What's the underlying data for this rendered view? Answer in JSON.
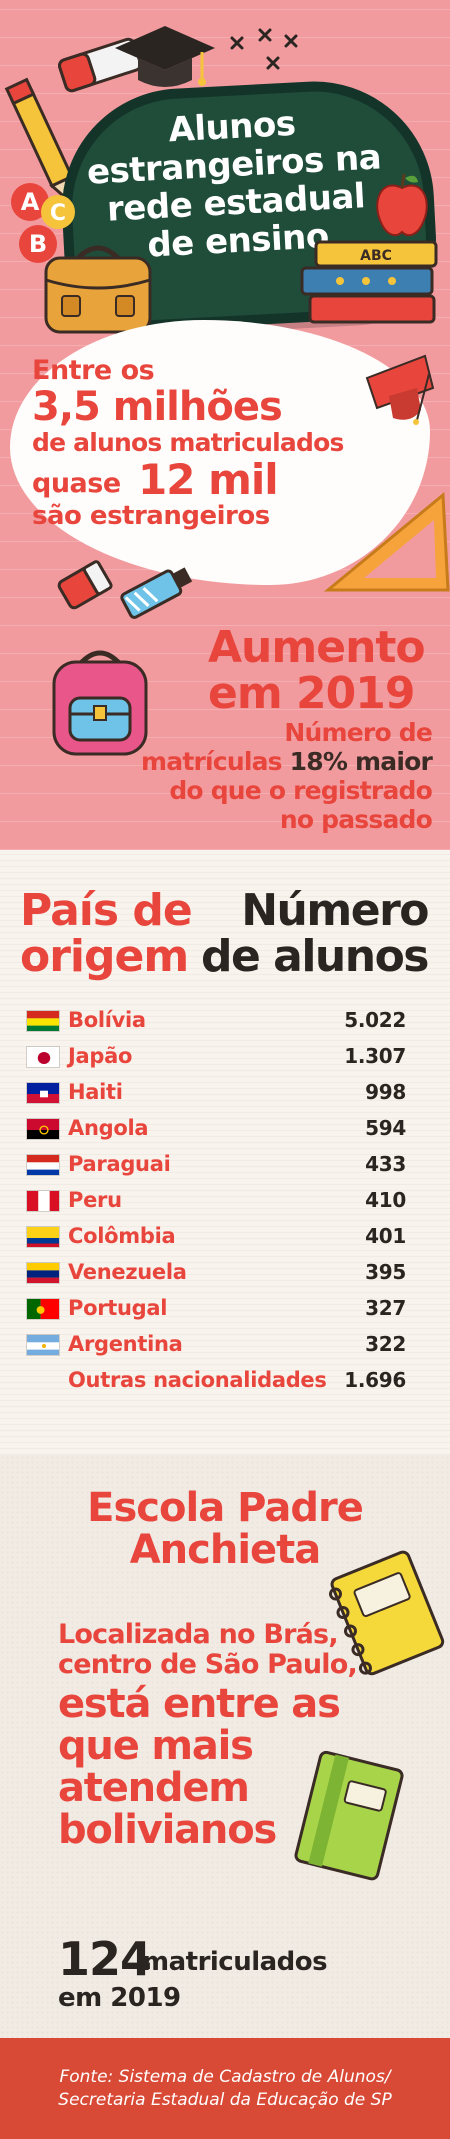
{
  "header": {
    "title_lines": [
      "Alunos",
      "estrangeiros na",
      "rede estadual",
      "de ensino"
    ],
    "book_label": "ABC",
    "letter_blocks": [
      "A",
      "C",
      "B"
    ]
  },
  "intro": {
    "line1": "Entre os",
    "line2": "3,5 milhões",
    "line3": "de alunos matriculados",
    "line4a": "quase",
    "line4b": "12 mil",
    "line5": "são estrangeiros"
  },
  "increase": {
    "title_lines": [
      "Aumento",
      "em 2019"
    ],
    "text_line1": "Número de",
    "text_line2_a": "matrículas",
    "text_line2_b": "18% maior",
    "text_line3": "do que o registrado",
    "text_line4": "no passado"
  },
  "table": {
    "col_left_lines": [
      "País de",
      "origem"
    ],
    "col_right_lines": [
      "Número",
      "de alunos"
    ],
    "rows": [
      {
        "country": "Bolívia",
        "students": "5.022",
        "flag": "bolivia-flag"
      },
      {
        "country": "Japão",
        "students": "1.307",
        "flag": "japan-flag"
      },
      {
        "country": "Haiti",
        "students": "998",
        "flag": "haiti-flag"
      },
      {
        "country": "Angola",
        "students": "594",
        "flag": "angola-flag"
      },
      {
        "country": "Paraguai",
        "students": "433",
        "flag": "paraguay-flag"
      },
      {
        "country": "Peru",
        "students": "410",
        "flag": "peru-flag"
      },
      {
        "country": "Colômbia",
        "students": "401",
        "flag": "colombia-flag"
      },
      {
        "country": "Venezuela",
        "students": "395",
        "flag": "venezuela-flag"
      },
      {
        "country": "Portugal",
        "students": "327",
        "flag": "portugal-flag"
      },
      {
        "country": "Argentina",
        "students": "322",
        "flag": "argentina-flag"
      },
      {
        "country": "Outras nacionalidades",
        "students": "1.696",
        "flag": ""
      }
    ]
  },
  "school": {
    "title_lines": [
      "Escola Padre",
      "Anchieta"
    ],
    "location_lines": [
      "Localizada no Brás,",
      "centro de São Paulo,"
    ],
    "highlight_lines": [
      "está entre as",
      "que mais",
      "atendem",
      "bolivianos"
    ],
    "count": "124",
    "count_label_line1": "matriculados",
    "count_label_line2": "em 2019"
  },
  "footer": {
    "source_lines": [
      "Fonte: Sistema de Cadastro de Alunos/",
      "Secretaria Estadual da Educação de SP"
    ]
  },
  "colors": {
    "accent_red": "#e8453c",
    "pink_bg": "#f29b9f",
    "chalkboard": "#1f4d3a",
    "footer_bg": "#d94a36",
    "dark_text": "#2b2522"
  }
}
